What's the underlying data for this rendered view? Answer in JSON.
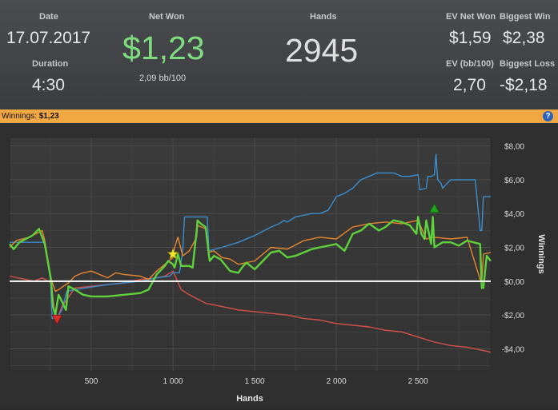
{
  "header": {
    "date_label": "Date",
    "date_value": "17.07.2017",
    "duration_label": "Duration",
    "duration_value": "4:30",
    "net_won_label": "Net Won",
    "net_won_value": "$1,23",
    "net_won_sub": "2,09 bb/100",
    "hands_label": "Hands",
    "hands_value": "2945",
    "ev_net_won_label": "EV Net Won",
    "ev_net_won_value": "$1,59",
    "biggest_win_label": "Biggest Win",
    "biggest_win_value": "$2,38",
    "ev_bb_label": "EV (bb/100)",
    "ev_bb_value": "2,70",
    "biggest_loss_label": "Biggest Loss",
    "biggest_loss_value": "-$2,18"
  },
  "winnings_bar": {
    "label": "Winnings:",
    "value": "$1,23",
    "help": "?"
  },
  "chart_data": {
    "type": "line",
    "xlabel": "Hands",
    "ylabel": "Winnings",
    "xlim": [
      0,
      2945
    ],
    "ylim": [
      -5.3,
      8.5
    ],
    "x_ticks": [
      500,
      1000,
      1500,
      2000,
      2500
    ],
    "x_tick_labels": [
      "500",
      "1 000",
      "1 500",
      "2 000",
      "2 500"
    ],
    "y_ticks": [
      -4,
      -2,
      0,
      2,
      4,
      6,
      8
    ],
    "y_tick_labels": [
      "-$4,00",
      "-$2,00",
      "$0,00",
      "$2,00",
      "$4,00",
      "$6,00",
      "$8,00"
    ],
    "grid": true,
    "colors": {
      "green": "#5fd13b",
      "orange": "#e8862e",
      "blue": "#3a8fd0",
      "red": "#d9504a",
      "zero": "#ffffff"
    },
    "series": [
      {
        "color": "green",
        "x": [
          0,
          25,
          60,
          140,
          180,
          215,
          255,
          265,
          280,
          300,
          320,
          345,
          360,
          400,
          450,
          500,
          600,
          700,
          800,
          850,
          900,
          950,
          970,
          1000,
          1010,
          1030,
          1050,
          1100,
          1120,
          1145,
          1150,
          1170,
          1200,
          1220,
          1225,
          1250,
          1290,
          1350,
          1400,
          1430,
          1450,
          1500,
          1550,
          1600,
          1650,
          1700,
          1750,
          1800,
          1850,
          1900,
          1950,
          2000,
          2050,
          2100,
          2150,
          2200,
          2230,
          2260,
          2300,
          2350,
          2400,
          2450,
          2490,
          2500,
          2520,
          2540,
          2550,
          2580,
          2590,
          2600,
          2650,
          2700,
          2750,
          2800,
          2880,
          2890,
          2900,
          2920,
          2945
        ],
        "y": [
          2.2,
          1.9,
          2.3,
          2.7,
          3.1,
          2.2,
          0.0,
          -1.5,
          -2.0,
          -0.8,
          -1.2,
          -1.7,
          -0.3,
          -0.5,
          -0.8,
          -0.9,
          -0.9,
          -0.8,
          -0.7,
          -0.5,
          0.4,
          0.9,
          1.2,
          1.0,
          0.8,
          1.6,
          0.9,
          0.9,
          0.8,
          3.0,
          3.6,
          3.4,
          3.2,
          1.5,
          1.2,
          1.5,
          1.3,
          0.6,
          0.5,
          0.9,
          1.1,
          0.7,
          1.2,
          1.7,
          1.8,
          1.4,
          1.5,
          1.7,
          1.9,
          2.0,
          2.1,
          2.2,
          1.8,
          2.8,
          3.0,
          3.4,
          3.2,
          3.0,
          3.2,
          3.6,
          3.5,
          3.3,
          2.8,
          3.8,
          2.8,
          2.5,
          3.6,
          2.2,
          3.8,
          2.0,
          2.3,
          2.3,
          2.1,
          2.4,
          2.2,
          -0.4,
          -0.4,
          1.5,
          1.2
        ]
      },
      {
        "color": "orange",
        "x": [
          0,
          40,
          120,
          200,
          215,
          255,
          280,
          300,
          330,
          360,
          400,
          450,
          500,
          550,
          600,
          650,
          700,
          800,
          850,
          900,
          950,
          1000,
          1010,
          1020,
          1030,
          1060,
          1100,
          1145,
          1150,
          1200,
          1220,
          1250,
          1300,
          1350,
          1400,
          1450,
          1500,
          1600,
          1700,
          1800,
          1900,
          2000,
          2100,
          2200,
          2300,
          2400,
          2500,
          2550,
          2600,
          2700,
          2800,
          2880,
          2890,
          2900,
          2945
        ],
        "y": [
          2.0,
          2.4,
          2.6,
          3.0,
          2.4,
          0.1,
          -0.6,
          -0.5,
          -0.3,
          -0.1,
          0.3,
          0.5,
          0.6,
          0.4,
          0.2,
          0.5,
          0.4,
          0.3,
          0.1,
          0.6,
          1.0,
          1.4,
          2.0,
          2.3,
          2.6,
          1.5,
          1.8,
          2.6,
          3.3,
          3.1,
          1.7,
          1.8,
          1.4,
          1.3,
          1.0,
          1.1,
          1.2,
          2.0,
          1.9,
          2.4,
          2.6,
          2.5,
          3.2,
          3.4,
          3.5,
          3.4,
          3.6,
          2.5,
          2.6,
          2.5,
          2.6,
          0.1,
          0.0,
          1.6,
          1.7
        ]
      },
      {
        "color": "blue",
        "x": [
          0,
          215,
          250,
          260,
          290,
          320,
          350,
          400,
          600,
          800,
          900,
          980,
          1000,
          1010,
          1040,
          1050,
          1060,
          1070,
          1140,
          1150,
          1210,
          1220,
          1300,
          1400,
          1500,
          1600,
          1650,
          1680,
          1700,
          1750,
          1800,
          1850,
          1900,
          1950,
          2000,
          2050,
          2100,
          2150,
          2200,
          2250,
          2300,
          2350,
          2400,
          2450,
          2500,
          2510,
          2550,
          2560,
          2580,
          2600,
          2610,
          2620,
          2640,
          2650,
          2700,
          2800,
          2850,
          2880,
          2890,
          2900,
          2920,
          2945
        ],
        "y": [
          2.3,
          2.3,
          0.1,
          -2.2,
          -2.2,
          -1.7,
          -0.6,
          -0.5,
          -0.2,
          0.0,
          0.2,
          0.3,
          0.5,
          0.5,
          0.5,
          1.2,
          1.8,
          3.8,
          3.8,
          3.8,
          3.8,
          1.8,
          2.0,
          2.3,
          2.7,
          3.2,
          3.4,
          3.6,
          3.5,
          3.8,
          3.9,
          4.0,
          4.0,
          4.2,
          5.0,
          5.2,
          5.5,
          6.0,
          6.2,
          6.4,
          6.4,
          6.4,
          6.2,
          6.2,
          6.3,
          5.4,
          5.5,
          6.2,
          6.2,
          6.3,
          7.5,
          6.0,
          5.8,
          5.5,
          6.0,
          6.0,
          6.0,
          3.0,
          3.0,
          5.0,
          5.0,
          5.0
        ]
      },
      {
        "color": "red",
        "x": [
          0,
          100,
          150,
          200,
          255,
          280,
          300,
          320,
          400,
          500,
          600,
          700,
          800,
          900,
          950,
          1000,
          1050,
          1100,
          1200,
          1300,
          1400,
          1500,
          1600,
          1700,
          1800,
          1900,
          2000,
          2100,
          2200,
          2300,
          2400,
          2500,
          2600,
          2700,
          2800,
          2900,
          2945
        ],
        "y": [
          0.3,
          0.1,
          0.0,
          0.2,
          -0.1,
          -2.2,
          -2.0,
          -1.5,
          -0.4,
          -0.3,
          -0.2,
          -0.1,
          0.1,
          0.2,
          0.3,
          0.6,
          -0.5,
          -0.8,
          -1.3,
          -1.5,
          -1.7,
          -1.8,
          -1.9,
          -2.0,
          -2.2,
          -2.3,
          -2.5,
          -2.6,
          -2.7,
          -2.9,
          -3.0,
          -3.3,
          -3.6,
          -3.8,
          -3.9,
          -4.1,
          -4.2
        ]
      }
    ],
    "zero_line": 0,
    "markers": [
      {
        "type": "triangle-down",
        "color": "#e02a2a",
        "x": 290,
        "y": -2.3
      },
      {
        "type": "star",
        "color": "#f3e82a",
        "x": 1000,
        "y": 1.6
      },
      {
        "type": "triangle-up",
        "color": "#1fa31f",
        "x": 2600,
        "y": 4.3
      }
    ]
  }
}
